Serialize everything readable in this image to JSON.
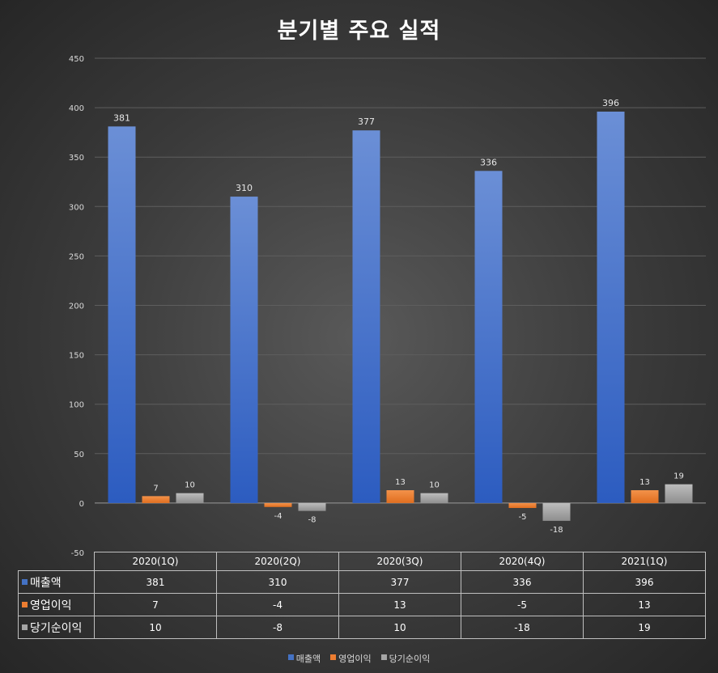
{
  "chart_data": {
    "type": "bar",
    "title": "분기별 주요 실적",
    "categories": [
      "2020(1Q)",
      "2020(2Q)",
      "2020(3Q)",
      "2020(4Q)",
      "2021(1Q)"
    ],
    "series": [
      {
        "name": "매출액",
        "color": "#4472c4",
        "values": [
          381,
          310,
          377,
          336,
          396
        ]
      },
      {
        "name": "영업이익",
        "color": "#ed7d31",
        "values": [
          7,
          -4,
          13,
          -5,
          13
        ]
      },
      {
        "name": "당기순이익",
        "color": "#a5a5a5",
        "values": [
          10,
          -8,
          10,
          -18,
          19
        ]
      }
    ],
    "ylim": [
      -50,
      450
    ],
    "yticks": [
      450,
      400,
      350,
      300,
      250,
      200,
      150,
      100,
      50,
      0,
      -50
    ],
    "grid": true,
    "legend": "bottom",
    "data_table": true
  }
}
